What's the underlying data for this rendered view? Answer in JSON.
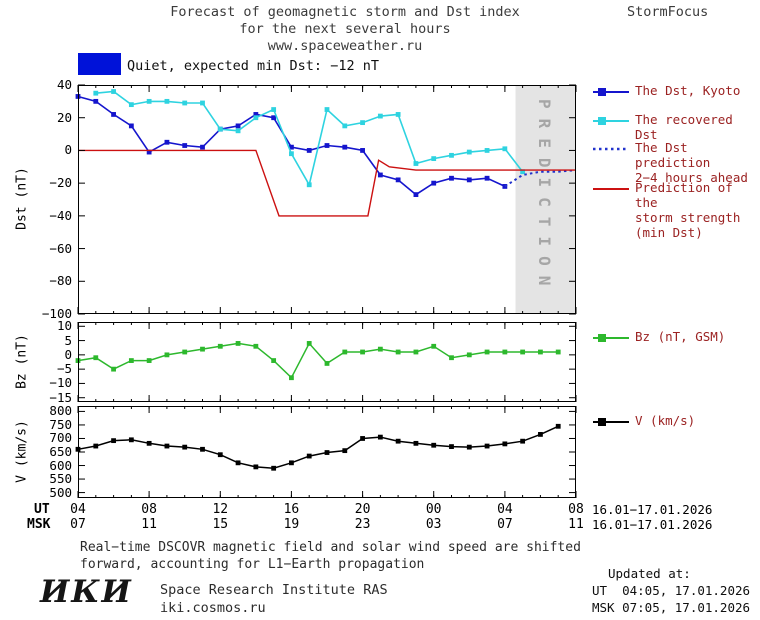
{
  "title": {
    "line1": "Forecast of geomagnetic storm and Dst index",
    "line2": "for the next several hours",
    "line3": "www.spaceweather.ru"
  },
  "brand": "StormFocus",
  "status": {
    "label": "Quiet, expected min Dst: −12 nT"
  },
  "colors": {
    "status_swatch": "#0012d9",
    "kyoto": "#1515cd",
    "recovered": "#2ed3e0",
    "prediction": "#2233cc",
    "storm": "#cc1111",
    "bz": "#2db82d",
    "v": "#000000"
  },
  "prediction_band": {
    "label": "PREDICTION",
    "start_hour": 28.6,
    "end_hour": 32,
    "fill": "#e4e4e4",
    "text_color": "#a6a6a6"
  },
  "legend": {
    "kyoto": "The Dst, Kyoto",
    "recovered": "The recovered Dst",
    "prediction": "The Dst prediction\n2−4 hours ahead",
    "storm": "Prediction of the\nstorm strength\n(min Dst)",
    "bz": "Bz (nT, GSM)",
    "v": "V (km/s)"
  },
  "axes": {
    "dst_ylabel": "Dst (nT)",
    "bz_ylabel": "Bz (nT)",
    "v_ylabel": "V (km/s)",
    "ut_row_label": "UT",
    "msk_row_label": "MSK",
    "ut_ticks": [
      "04",
      "08",
      "12",
      "16",
      "20",
      "00",
      "04",
      "08"
    ],
    "msk_ticks": [
      "07",
      "11",
      "15",
      "19",
      "23",
      "03",
      "07",
      "11"
    ],
    "ut_date_range": "16.01−17.01.2026",
    "msk_date_range": "16.01−17.01.2026"
  },
  "footnote": "Real−time DSCOVR magnetic field and solar wind speed are shifted\nforward, accounting for L1−Earth propagation",
  "institute": {
    "logo": "ИКИ",
    "name": "Space Research Institute RAS",
    "site": "iki.cosmos.ru"
  },
  "updated": {
    "heading": "Updated at:",
    "ut": "UT  04:05, 17.01.2026",
    "msk": "MSK 07:05, 17.01.2026"
  },
  "chart_data": [
    {
      "type": "line",
      "panel": "dst",
      "ylabel": "Dst (nT)",
      "xlim": [
        4,
        32
      ],
      "ylim": [
        -100,
        40
      ],
      "yticks": [
        40,
        20,
        0,
        -20,
        -40,
        -60,
        -80,
        -100
      ],
      "xticks": [
        4,
        8,
        12,
        16,
        20,
        24,
        28,
        32
      ],
      "series": [
        {
          "name": "The Dst, Kyoto",
          "color": "#1515cd",
          "marker": "square",
          "lw": 1.6,
          "x": [
            4,
            5,
            6,
            7,
            8,
            9,
            10,
            11,
            12,
            13,
            14,
            15,
            16,
            17,
            18,
            19,
            20,
            21,
            22,
            23,
            24,
            25,
            26,
            27,
            28
          ],
          "y": [
            33,
            30,
            22,
            15,
            -1,
            5,
            3,
            2,
            13,
            15,
            22,
            20,
            2,
            0,
            3,
            2,
            0,
            -15,
            -18,
            -27,
            -20,
            -17,
            -18,
            -17,
            -22
          ]
        },
        {
          "name": "The recovered Dst",
          "color": "#2ed3e0",
          "marker": "square",
          "lw": 1.6,
          "x": [
            5,
            6,
            7,
            8,
            9,
            10,
            11,
            12,
            13,
            14,
            15,
            16,
            17,
            18,
            19,
            20,
            21,
            22,
            23,
            24,
            25,
            26,
            27,
            28,
            29
          ],
          "y": [
            35,
            36,
            28,
            30,
            30,
            29,
            29,
            13,
            12,
            20,
            25,
            -2,
            -21,
            25,
            15,
            17,
            21,
            22,
            -8,
            -5,
            -3,
            -1,
            0,
            1,
            -13
          ]
        },
        {
          "name": "The Dst prediction 2−4 hours ahead",
          "color": "#2233cc",
          "dash": "dotted",
          "lw": 2,
          "x": [
            28,
            29,
            30,
            31,
            32
          ],
          "y": [
            -22,
            -15,
            -13,
            -13,
            -12
          ]
        },
        {
          "name": "Prediction of the storm strength (min Dst)",
          "color": "#cc1111",
          "lw": 1.4,
          "x": [
            4,
            14,
            15.3,
            20.3,
            20.9,
            21.5,
            23,
            32
          ],
          "y": [
            0,
            0,
            -40,
            -40,
            -6,
            -10,
            -12,
            -12
          ]
        }
      ]
    },
    {
      "type": "line",
      "panel": "bz",
      "ylabel": "Bz (nT)",
      "xlim": [
        4,
        32
      ],
      "ylim": [
        -16.5,
        11.5
      ],
      "yticks": [
        10,
        5,
        0,
        -5,
        -10,
        -15
      ],
      "xticks": [
        4,
        8,
        12,
        16,
        20,
        24,
        28,
        32
      ],
      "series": [
        {
          "name": "Bz (nT, GSM)",
          "color": "#2db82d",
          "marker": "square",
          "lw": 1.5,
          "x": [
            4,
            5,
            6,
            7,
            8,
            9,
            10,
            11,
            12,
            13,
            14,
            15,
            16,
            17,
            18,
            19,
            20,
            21,
            22,
            23,
            24,
            25,
            26,
            27,
            28,
            29,
            30,
            31
          ],
          "y": [
            -2,
            -1,
            -5,
            -2,
            -2,
            0,
            1,
            2,
            3,
            4,
            3,
            -2,
            -8,
            4,
            -3,
            1,
            1,
            2,
            1,
            1,
            3,
            -1,
            0,
            1,
            1,
            1,
            1,
            1
          ]
        }
      ]
    },
    {
      "type": "line",
      "panel": "v",
      "ylabel": "V (km/s)",
      "xlim": [
        4,
        32
      ],
      "ylim": [
        480,
        820
      ],
      "yticks": [
        800,
        750,
        700,
        650,
        600,
        550,
        500
      ],
      "xticks": [
        4,
        8,
        12,
        16,
        20,
        24,
        28,
        32
      ],
      "series": [
        {
          "name": "V (km/s)",
          "color": "#000000",
          "marker": "square",
          "lw": 1.5,
          "x": [
            4,
            5,
            6,
            7,
            8,
            9,
            10,
            11,
            12,
            13,
            14,
            15,
            16,
            17,
            18,
            19,
            20,
            21,
            22,
            23,
            24,
            25,
            26,
            27,
            28,
            29,
            30,
            31
          ],
          "y": [
            660,
            672,
            692,
            695,
            682,
            672,
            668,
            660,
            640,
            610,
            595,
            590,
            610,
            635,
            648,
            655,
            700,
            705,
            690,
            682,
            675,
            670,
            668,
            672,
            680,
            690,
            715,
            745
          ]
        }
      ]
    }
  ]
}
